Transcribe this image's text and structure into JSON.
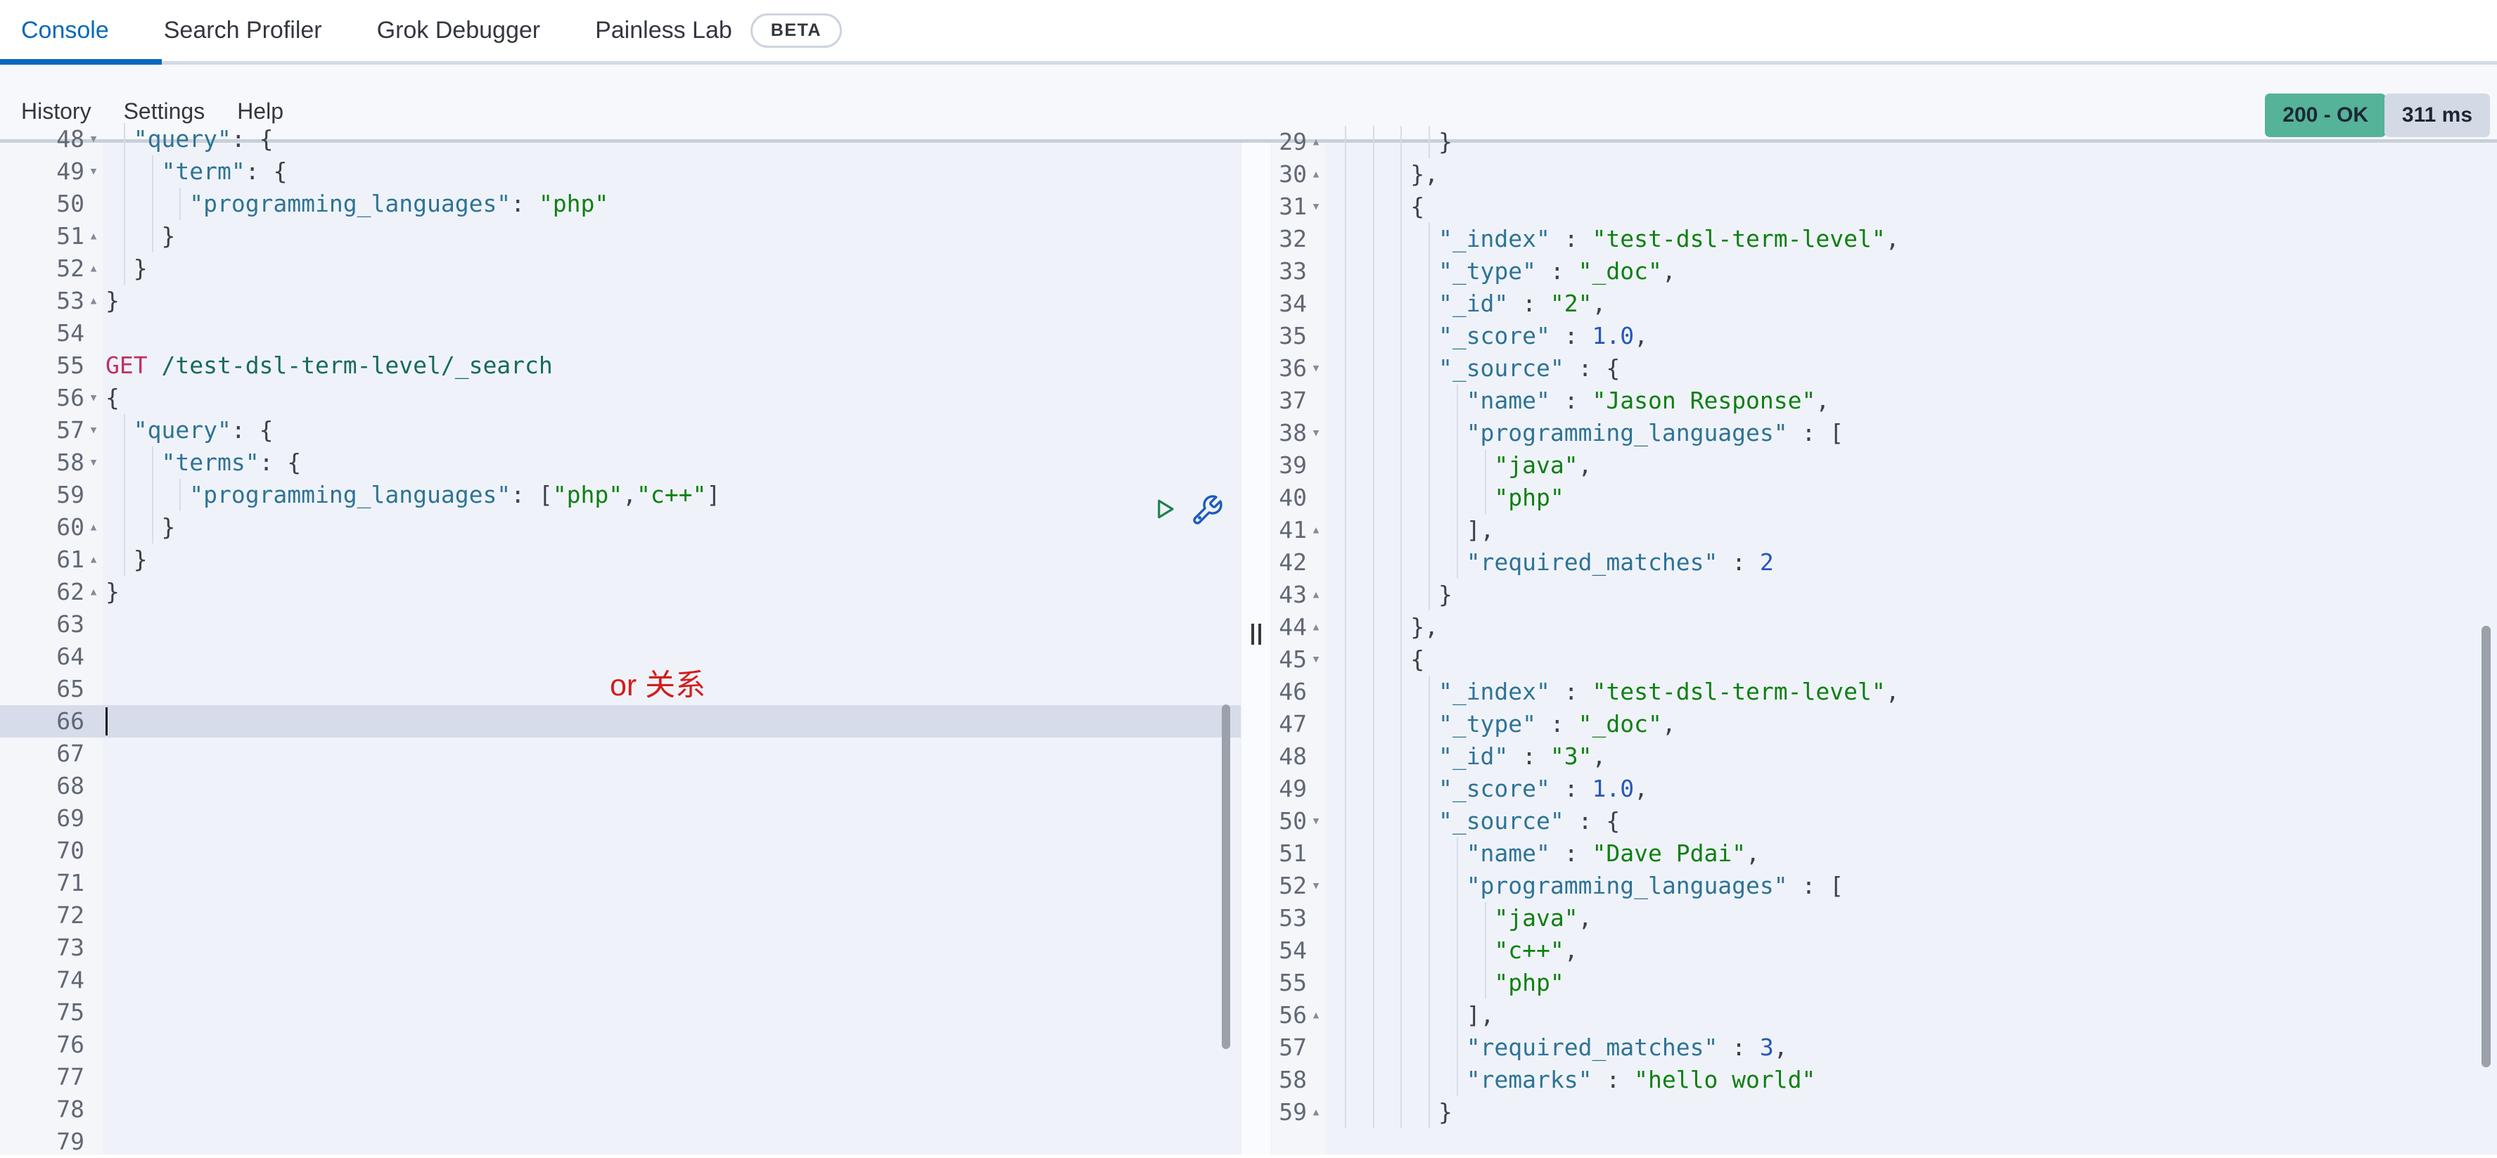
{
  "tabs": [
    {
      "label": "Console",
      "active": true
    },
    {
      "label": "Search Profiler",
      "active": false
    },
    {
      "label": "Grok Debugger",
      "active": false
    },
    {
      "label": "Painless Lab",
      "active": false,
      "badge": "BETA"
    }
  ],
  "menu": [
    "History",
    "Settings",
    "Help"
  ],
  "status": {
    "code": "200 - OK",
    "time": "311 ms"
  },
  "annotation": "or 关系",
  "icons": {
    "send_request": "play-icon",
    "request_options": "wrench-icon"
  },
  "colors": {
    "accent": "#0868ba",
    "success_badge": "#54b399",
    "time_badge": "#d3dae6",
    "key": "#2e7396",
    "string": "#0f7f12",
    "number": "#2757ba",
    "method": "#c12f66",
    "url": "#176a5e",
    "annotation_red": "#d31d1d"
  },
  "left_editor": {
    "lines": [
      {
        "n": 48,
        "fold": "open",
        "indent": 1,
        "tokens": [
          [
            "key",
            "\"query\""
          ],
          [
            "p",
            ": {"
          ]
        ]
      },
      {
        "n": 49,
        "fold": "open",
        "indent": 2,
        "tokens": [
          [
            "key",
            "\"term\""
          ],
          [
            "p",
            ": {"
          ]
        ]
      },
      {
        "n": 50,
        "fold": null,
        "indent": 3,
        "tokens": [
          [
            "key",
            "\"programming_languages\""
          ],
          [
            "p",
            ": "
          ],
          [
            "str",
            "\"php\""
          ]
        ]
      },
      {
        "n": 51,
        "fold": "close",
        "indent": 2,
        "tokens": [
          [
            "p",
            "}"
          ]
        ]
      },
      {
        "n": 52,
        "fold": "close",
        "indent": 1,
        "tokens": [
          [
            "p",
            "}"
          ]
        ]
      },
      {
        "n": 53,
        "fold": "close",
        "indent": 0,
        "tokens": [
          [
            "p",
            "}"
          ]
        ]
      },
      {
        "n": 54,
        "fold": null,
        "indent": 0,
        "tokens": []
      },
      {
        "n": 55,
        "fold": null,
        "indent": 0,
        "tokens": [
          [
            "method",
            "GET"
          ],
          [
            "p",
            " "
          ],
          [
            "url",
            "/test-dsl-term-level/_search"
          ]
        ]
      },
      {
        "n": 56,
        "fold": "open",
        "indent": 0,
        "tokens": [
          [
            "p",
            "{"
          ]
        ]
      },
      {
        "n": 57,
        "fold": "open",
        "indent": 1,
        "tokens": [
          [
            "key",
            "\"query\""
          ],
          [
            "p",
            ": {"
          ]
        ]
      },
      {
        "n": 58,
        "fold": "open",
        "indent": 2,
        "tokens": [
          [
            "key",
            "\"terms\""
          ],
          [
            "p",
            ": {"
          ]
        ]
      },
      {
        "n": 59,
        "fold": null,
        "indent": 3,
        "tokens": [
          [
            "key",
            "\"programming_languages\""
          ],
          [
            "p",
            ": ["
          ],
          [
            "str",
            "\"php\""
          ],
          [
            "p",
            ","
          ],
          [
            "str",
            "\"c++\""
          ],
          [
            "p",
            "]"
          ]
        ]
      },
      {
        "n": 60,
        "fold": "close",
        "indent": 2,
        "tokens": [
          [
            "p",
            "}"
          ]
        ]
      },
      {
        "n": 61,
        "fold": "close",
        "indent": 1,
        "tokens": [
          [
            "p",
            "}"
          ]
        ]
      },
      {
        "n": 62,
        "fold": "close",
        "indent": 0,
        "tokens": [
          [
            "p",
            "}"
          ]
        ]
      },
      {
        "n": 63,
        "fold": null,
        "indent": 0,
        "tokens": []
      },
      {
        "n": 64,
        "fold": null,
        "indent": 0,
        "tokens": []
      },
      {
        "n": 65,
        "fold": null,
        "indent": 0,
        "tokens": []
      },
      {
        "n": 66,
        "fold": null,
        "indent": 0,
        "tokens": [],
        "active": true,
        "cursor": true
      },
      {
        "n": 67,
        "fold": null,
        "indent": 0,
        "tokens": []
      },
      {
        "n": 68,
        "fold": null,
        "indent": 0,
        "tokens": []
      },
      {
        "n": 69,
        "fold": null,
        "indent": 0,
        "tokens": []
      },
      {
        "n": 70,
        "fold": null,
        "indent": 0,
        "tokens": []
      },
      {
        "n": 71,
        "fold": null,
        "indent": 0,
        "tokens": []
      },
      {
        "n": 72,
        "fold": null,
        "indent": 0,
        "tokens": []
      },
      {
        "n": 73,
        "fold": null,
        "indent": 0,
        "tokens": []
      },
      {
        "n": 74,
        "fold": null,
        "indent": 0,
        "tokens": []
      },
      {
        "n": 75,
        "fold": null,
        "indent": 0,
        "tokens": []
      },
      {
        "n": 76,
        "fold": null,
        "indent": 0,
        "tokens": []
      },
      {
        "n": 77,
        "fold": null,
        "indent": 0,
        "tokens": []
      },
      {
        "n": 78,
        "fold": null,
        "indent": 0,
        "tokens": []
      },
      {
        "n": 79,
        "fold": null,
        "indent": 0,
        "tokens": []
      }
    ]
  },
  "right_editor": {
    "lines": [
      {
        "n": 29,
        "fold": "close",
        "indent": 4,
        "tokens": [
          [
            "p",
            "}"
          ]
        ]
      },
      {
        "n": 30,
        "fold": "close",
        "indent": 3,
        "tokens": [
          [
            "p",
            "},"
          ]
        ]
      },
      {
        "n": 31,
        "fold": "open",
        "indent": 3,
        "tokens": [
          [
            "p",
            "{"
          ]
        ]
      },
      {
        "n": 32,
        "fold": null,
        "indent": 4,
        "tokens": [
          [
            "key",
            "\"_index\""
          ],
          [
            "p",
            " : "
          ],
          [
            "str",
            "\"test-dsl-term-level\""
          ],
          [
            "p",
            ","
          ]
        ]
      },
      {
        "n": 33,
        "fold": null,
        "indent": 4,
        "tokens": [
          [
            "key",
            "\"_type\""
          ],
          [
            "p",
            " : "
          ],
          [
            "str",
            "\"_doc\""
          ],
          [
            "p",
            ","
          ]
        ]
      },
      {
        "n": 34,
        "fold": null,
        "indent": 4,
        "tokens": [
          [
            "key",
            "\"_id\""
          ],
          [
            "p",
            " : "
          ],
          [
            "str",
            "\"2\""
          ],
          [
            "p",
            ","
          ]
        ]
      },
      {
        "n": 35,
        "fold": null,
        "indent": 4,
        "tokens": [
          [
            "key",
            "\"_score\""
          ],
          [
            "p",
            " : "
          ],
          [
            "num",
            "1.0"
          ],
          [
            "p",
            ","
          ]
        ]
      },
      {
        "n": 36,
        "fold": "open",
        "indent": 4,
        "tokens": [
          [
            "key",
            "\"_source\""
          ],
          [
            "p",
            " : {"
          ]
        ]
      },
      {
        "n": 37,
        "fold": null,
        "indent": 5,
        "tokens": [
          [
            "key",
            "\"name\""
          ],
          [
            "p",
            " : "
          ],
          [
            "str",
            "\"Jason Response\""
          ],
          [
            "p",
            ","
          ]
        ]
      },
      {
        "n": 38,
        "fold": "open",
        "indent": 5,
        "tokens": [
          [
            "key",
            "\"programming_languages\""
          ],
          [
            "p",
            " : ["
          ]
        ]
      },
      {
        "n": 39,
        "fold": null,
        "indent": 6,
        "tokens": [
          [
            "str",
            "\"java\""
          ],
          [
            "p",
            ","
          ]
        ]
      },
      {
        "n": 40,
        "fold": null,
        "indent": 6,
        "tokens": [
          [
            "str",
            "\"php\""
          ]
        ]
      },
      {
        "n": 41,
        "fold": "close",
        "indent": 5,
        "tokens": [
          [
            "p",
            "],"
          ]
        ]
      },
      {
        "n": 42,
        "fold": null,
        "indent": 5,
        "tokens": [
          [
            "key",
            "\"required_matches\""
          ],
          [
            "p",
            " : "
          ],
          [
            "num",
            "2"
          ]
        ]
      },
      {
        "n": 43,
        "fold": "close",
        "indent": 4,
        "tokens": [
          [
            "p",
            "}"
          ]
        ]
      },
      {
        "n": 44,
        "fold": "close",
        "indent": 3,
        "tokens": [
          [
            "p",
            "},"
          ]
        ]
      },
      {
        "n": 45,
        "fold": "open",
        "indent": 3,
        "tokens": [
          [
            "p",
            "{"
          ]
        ]
      },
      {
        "n": 46,
        "fold": null,
        "indent": 4,
        "tokens": [
          [
            "key",
            "\"_index\""
          ],
          [
            "p",
            " : "
          ],
          [
            "str",
            "\"test-dsl-term-level\""
          ],
          [
            "p",
            ","
          ]
        ]
      },
      {
        "n": 47,
        "fold": null,
        "indent": 4,
        "tokens": [
          [
            "key",
            "\"_type\""
          ],
          [
            "p",
            " : "
          ],
          [
            "str",
            "\"_doc\""
          ],
          [
            "p",
            ","
          ]
        ]
      },
      {
        "n": 48,
        "fold": null,
        "indent": 4,
        "tokens": [
          [
            "key",
            "\"_id\""
          ],
          [
            "p",
            " : "
          ],
          [
            "str",
            "\"3\""
          ],
          [
            "p",
            ","
          ]
        ]
      },
      {
        "n": 49,
        "fold": null,
        "indent": 4,
        "tokens": [
          [
            "key",
            "\"_score\""
          ],
          [
            "p",
            " : "
          ],
          [
            "num",
            "1.0"
          ],
          [
            "p",
            ","
          ]
        ]
      },
      {
        "n": 50,
        "fold": "open",
        "indent": 4,
        "tokens": [
          [
            "key",
            "\"_source\""
          ],
          [
            "p",
            " : {"
          ]
        ]
      },
      {
        "n": 51,
        "fold": null,
        "indent": 5,
        "tokens": [
          [
            "key",
            "\"name\""
          ],
          [
            "p",
            " : "
          ],
          [
            "str",
            "\"Dave Pdai\""
          ],
          [
            "p",
            ","
          ]
        ]
      },
      {
        "n": 52,
        "fold": "open",
        "indent": 5,
        "tokens": [
          [
            "key",
            "\"programming_languages\""
          ],
          [
            "p",
            " : ["
          ]
        ]
      },
      {
        "n": 53,
        "fold": null,
        "indent": 6,
        "tokens": [
          [
            "str",
            "\"java\""
          ],
          [
            "p",
            ","
          ]
        ]
      },
      {
        "n": 54,
        "fold": null,
        "indent": 6,
        "tokens": [
          [
            "str",
            "\"c++\""
          ],
          [
            "p",
            ","
          ]
        ]
      },
      {
        "n": 55,
        "fold": null,
        "indent": 6,
        "tokens": [
          [
            "str",
            "\"php\""
          ]
        ]
      },
      {
        "n": 56,
        "fold": "close",
        "indent": 5,
        "tokens": [
          [
            "p",
            "],"
          ]
        ]
      },
      {
        "n": 57,
        "fold": null,
        "indent": 5,
        "tokens": [
          [
            "key",
            "\"required_matches\""
          ],
          [
            "p",
            " : "
          ],
          [
            "num",
            "3"
          ],
          [
            "p",
            ","
          ]
        ]
      },
      {
        "n": 58,
        "fold": null,
        "indent": 5,
        "tokens": [
          [
            "key",
            "\"remarks\""
          ],
          [
            "p",
            " : "
          ],
          [
            "str",
            "\"hello world\""
          ]
        ]
      },
      {
        "n": 59,
        "fold": "close",
        "indent": 4,
        "tokens": [
          [
            "p",
            "}"
          ]
        ]
      }
    ]
  }
}
